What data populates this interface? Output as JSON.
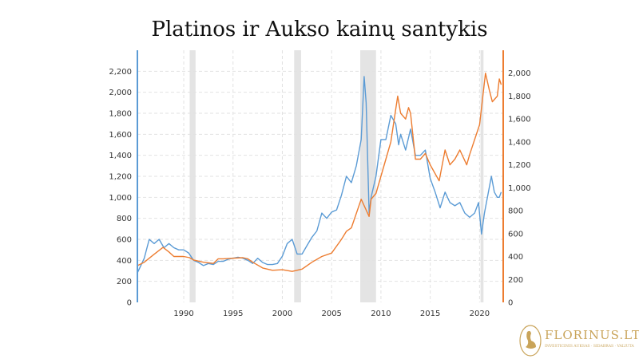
{
  "title": "Platinos ir Aukso kainų santykis",
  "logo": {
    "name": "FLORINUS.LT",
    "tagline": "INVESTICINIS AUKSAS · SIDABRAS · VALIUTA",
    "color": "#c9a45a"
  },
  "chart_data": {
    "type": "line",
    "title": "Platinos ir Aukso kainų santykis",
    "xlim": [
      1985.3,
      2022.4
    ],
    "x_ticks": [
      1990,
      1995,
      2000,
      2005,
      2010,
      2015,
      2020
    ],
    "x_tick_labels": [
      "1990",
      "1995",
      "2000",
      "2005",
      "2010",
      "2015",
      "2020"
    ],
    "y_left": {
      "range": [
        0,
        2400
      ],
      "ticks": [
        0,
        200,
        400,
        600,
        800,
        1000,
        1200,
        1400,
        1600,
        1800,
        2000,
        2200
      ],
      "tick_labels": [
        "0",
        "200",
        "400",
        "600",
        "800",
        "1,000",
        "1,200",
        "1,400",
        "1,600",
        "1,800",
        "2,000",
        "2,200"
      ],
      "color": "#5b9bd5"
    },
    "y_right": {
      "range": [
        0,
        2200
      ],
      "ticks": [
        0,
        200,
        400,
        600,
        800,
        1000,
        1200,
        1400,
        1600,
        1800,
        2000
      ],
      "tick_labels": [
        "0",
        "200",
        "400",
        "600",
        "800",
        "1,000",
        "1,200",
        "1,400",
        "1,600",
        "1,800",
        "2,000"
      ],
      "color": "#ed7d31"
    },
    "grid": true,
    "recessions": [
      [
        1990.6,
        1991.2
      ],
      [
        2001.2,
        2001.9
      ],
      [
        2007.9,
        2009.5
      ],
      [
        2020.1,
        2020.4
      ]
    ],
    "series": [
      {
        "axis": "left",
        "color": "#5b9bd5",
        "x": [
          1985.3,
          1986,
          1986.5,
          1987,
          1987.5,
          1988,
          1988.5,
          1989,
          1989.5,
          1990,
          1990.5,
          1991,
          1991.5,
          1992,
          1992.5,
          1993,
          1993.5,
          1994,
          1994.5,
          1995,
          1995.5,
          1996,
          1996.5,
          1997,
          1997.5,
          1998,
          1998.5,
          1999,
          1999.5,
          2000,
          2000.5,
          2001,
          2001.5,
          2002,
          2002.5,
          2003,
          2003.5,
          2004,
          2004.5,
          2005,
          2005.5,
          2006,
          2006.5,
          2007,
          2007.5,
          2008,
          2008.3,
          2008.5,
          2008.8,
          2009,
          2009.5,
          2010,
          2010.5,
          2011,
          2011.5,
          2011.8,
          2012,
          2012.5,
          2013,
          2013.5,
          2014,
          2014.5,
          2015,
          2015.5,
          2016,
          2016.5,
          2017,
          2017.5,
          2018,
          2018.5,
          2019,
          2019.5,
          2019.9,
          2020.2,
          2020.5,
          2021,
          2021.2,
          2021.5,
          2021.8,
          2022,
          2022.2
        ],
        "y": [
          280,
          420,
          600,
          560,
          600,
          520,
          560,
          520,
          500,
          500,
          470,
          400,
          380,
          350,
          370,
          360,
          390,
          390,
          410,
          420,
          430,
          420,
          400,
          370,
          420,
          380,
          360,
          360,
          370,
          440,
          560,
          600,
          460,
          460,
          540,
          620,
          680,
          850,
          800,
          860,
          880,
          1020,
          1200,
          1140,
          1300,
          1550,
          2150,
          1900,
          850,
          1000,
          1200,
          1550,
          1550,
          1780,
          1700,
          1500,
          1600,
          1450,
          1650,
          1400,
          1400,
          1450,
          1180,
          1050,
          900,
          1050,
          950,
          920,
          950,
          850,
          810,
          850,
          950,
          650,
          850,
          1100,
          1200,
          1050,
          1000,
          1000,
          1050
        ]
      },
      {
        "axis": "right",
        "color": "#ed7d31",
        "x": [
          1985.3,
          1986,
          1987,
          1987.9,
          1988.5,
          1989,
          1990,
          1990.6,
          1991,
          1992,
          1993,
          1993.5,
          1994,
          1995,
          1996,
          1996.5,
          1997,
          1998,
          1999,
          2000,
          2001,
          2002,
          2003,
          2004,
          2005,
          2006,
          2006.5,
          2007,
          2008,
          2008.8,
          2009,
          2009.5,
          2010,
          2010.5,
          2011,
          2011.7,
          2012,
          2012.5,
          2012.8,
          2013,
          2013.5,
          2014,
          2014.5,
          2015,
          2015.9,
          2016.5,
          2017,
          2017.5,
          2018,
          2018.7,
          2019,
          2019.5,
          2020,
          2020.6,
          2021,
          2021.3,
          2021.8,
          2022,
          2022.2
        ],
        "y": [
          320,
          350,
          420,
          480,
          440,
          400,
          400,
          390,
          370,
          350,
          340,
          380,
          380,
          385,
          390,
          380,
          350,
          300,
          280,
          285,
          270,
          290,
          350,
          400,
          430,
          550,
          620,
          650,
          900,
          750,
          900,
          950,
          1100,
          1250,
          1400,
          1800,
          1650,
          1600,
          1700,
          1650,
          1250,
          1250,
          1300,
          1200,
          1060,
          1330,
          1200,
          1250,
          1330,
          1200,
          1290,
          1420,
          1550,
          2000,
          1850,
          1750,
          1800,
          1950,
          1900
        ]
      }
    ]
  }
}
